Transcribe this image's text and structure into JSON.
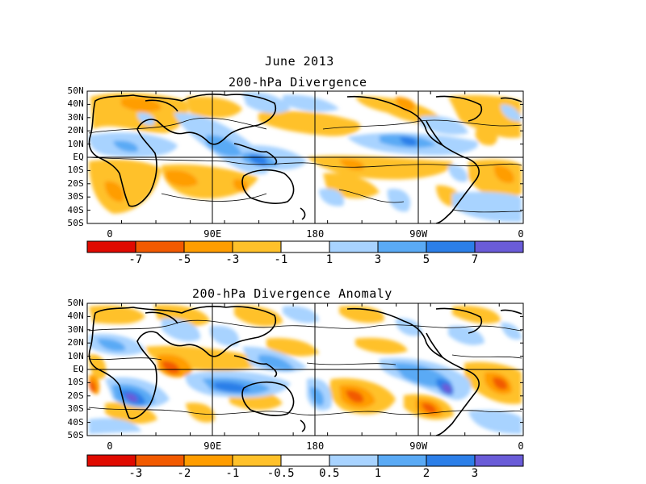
{
  "figure": {
    "title": "June 2013",
    "panels": [
      {
        "subtitle": "200-hPa Divergence",
        "lat_labels": [
          "50N",
          "40N",
          "30N",
          "20N",
          "10N",
          "EQ",
          "10S",
          "20S",
          "30S",
          "40S",
          "50S"
        ],
        "lon_labels": [
          "0",
          "90E",
          "180",
          "90W",
          "0"
        ],
        "colorbar": {
          "colors": [
            "#e00a00",
            "#f25a00",
            "#ff9d00",
            "#ffc12a",
            "#ffffff",
            "#a8d3ff",
            "#5aaaf5",
            "#2c7fe8",
            "#6a5cd8"
          ],
          "labels": [
            "-7",
            "-5",
            "-3",
            "-1",
            "1",
            "3",
            "5",
            "7"
          ]
        }
      },
      {
        "subtitle": "200-hPa Divergence Anomaly",
        "lat_labels": [
          "50N",
          "40N",
          "30N",
          "20N",
          "10N",
          "EQ",
          "10S",
          "20S",
          "30S",
          "40S",
          "50S"
        ],
        "lon_labels": [
          "0",
          "90E",
          "180",
          "90W",
          "0"
        ],
        "colorbar": {
          "colors": [
            "#e00a00",
            "#f25a00",
            "#ff9d00",
            "#ffc12a",
            "#ffffff",
            "#a8d3ff",
            "#5aaaf5",
            "#2c7fe8",
            "#6a5cd8"
          ],
          "labels": [
            "-3",
            "-2",
            "-1",
            "-0.5",
            "0.5",
            "1",
            "2",
            "3"
          ]
        }
      }
    ]
  }
}
